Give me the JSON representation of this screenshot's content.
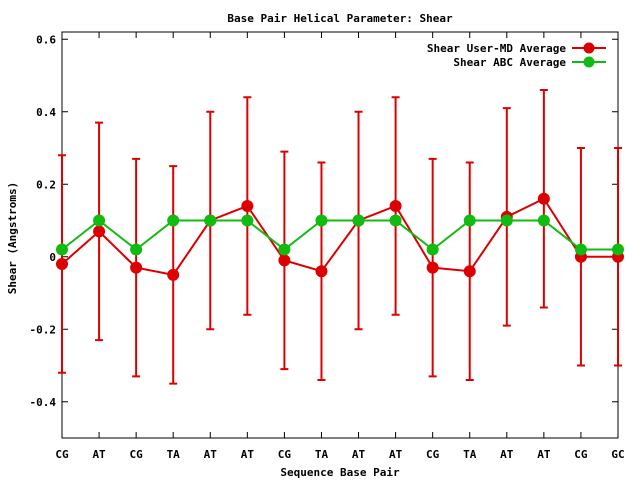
{
  "chart_data": {
    "type": "line",
    "title": "Base Pair Helical Parameter: Shear",
    "xlabel": "Sequence Base Pair",
    "ylabel": "Shear (Angstroms)",
    "categories": [
      "CG",
      "AT",
      "CG",
      "TA",
      "AT",
      "AT",
      "CG",
      "TA",
      "AT",
      "AT",
      "CG",
      "TA",
      "AT",
      "AT",
      "CG",
      "GC"
    ],
    "ylim": [
      -0.5,
      0.62
    ],
    "yticks": [
      -0.4,
      -0.2,
      0,
      0.2,
      0.4,
      0.6
    ],
    "ytick_labels": [
      "-0.4",
      "-0.2",
      "0",
      "0.2",
      "0.4",
      "0.6"
    ],
    "legend_position": "top-right",
    "grid": false,
    "series": [
      {
        "name": "Shear User-MD Average",
        "color": "#dd0000",
        "values": [
          -0.02,
          0.07,
          -0.03,
          -0.05,
          0.1,
          0.14,
          -0.01,
          -0.04,
          0.1,
          0.14,
          -0.03,
          -0.04,
          0.11,
          0.16,
          0.0,
          0.0
        ],
        "error_low": [
          -0.32,
          -0.23,
          -0.33,
          -0.35,
          -0.2,
          -0.16,
          -0.31,
          -0.34,
          -0.2,
          -0.16,
          -0.33,
          -0.34,
          -0.19,
          -0.14,
          -0.3,
          -0.3
        ],
        "error_high": [
          0.28,
          0.37,
          0.27,
          0.25,
          0.4,
          0.44,
          0.29,
          0.26,
          0.4,
          0.44,
          0.27,
          0.26,
          0.41,
          0.46,
          0.3,
          0.3
        ]
      },
      {
        "name": "Shear ABC Average",
        "color": "#11bb11",
        "values": [
          0.02,
          0.1,
          0.02,
          0.1,
          0.1,
          0.1,
          0.02,
          0.1,
          0.1,
          0.1,
          0.02,
          0.1,
          0.1,
          0.1,
          0.02,
          0.02
        ]
      }
    ]
  }
}
